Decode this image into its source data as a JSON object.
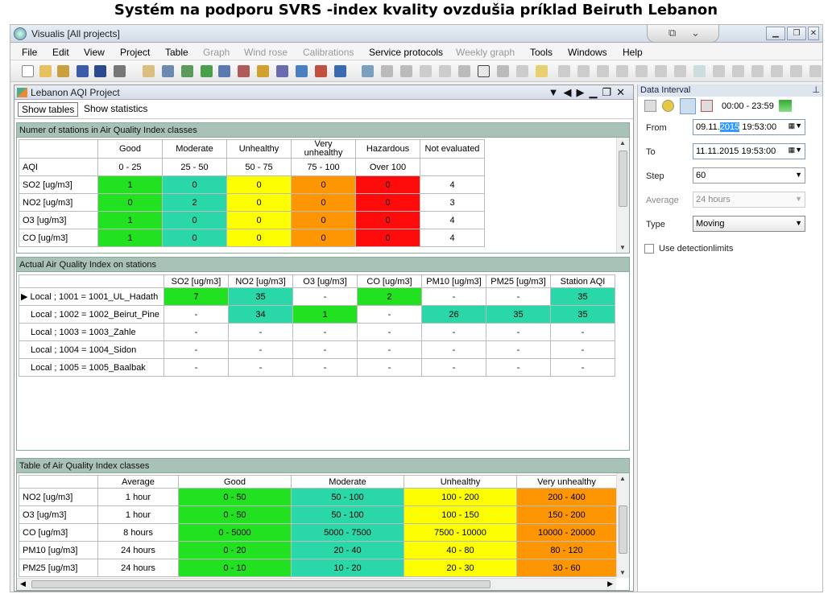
{
  "slide_title": "Systém na podporu SVRS -index kvality ovzdušia príklad Beiruth Lebanon",
  "window": {
    "title": "Visualis [All projects]"
  },
  "menu": [
    {
      "label": "File",
      "enabled": true
    },
    {
      "label": "Edit",
      "enabled": true
    },
    {
      "label": "View",
      "enabled": true
    },
    {
      "label": "Project",
      "enabled": true
    },
    {
      "label": "Table",
      "enabled": true
    },
    {
      "label": "Graph",
      "enabled": false
    },
    {
      "label": "Wind rose",
      "enabled": false
    },
    {
      "label": "Calibrations",
      "enabled": false
    },
    {
      "label": "Service protocols",
      "enabled": true
    },
    {
      "label": "Weekly graph",
      "enabled": false
    },
    {
      "label": "Tools",
      "enabled": true
    },
    {
      "label": "Windows",
      "enabled": true
    },
    {
      "label": "Help",
      "enabled": true
    }
  ],
  "project": {
    "title": "Lebanon AQI Project",
    "show_tables": "Show tables",
    "show_statistics": "Show statistics"
  },
  "section1": {
    "title": "Numer of stations in Air Quality Index classes",
    "headers": [
      "",
      "Good",
      "Moderate",
      "Unhealthy",
      "Very unhealthy",
      "Hazardous",
      "Not evaluated"
    ],
    "aqi_row": [
      "AQI",
      "0 - 25",
      "25 - 50",
      "50 - 75",
      "75 - 100",
      "Over 100",
      ""
    ],
    "rows": [
      {
        "name": "SO2 [ug/m3]",
        "vals": [
          "1",
          "0",
          "0",
          "0",
          "0",
          "4"
        ]
      },
      {
        "name": "NO2 [ug/m3]",
        "vals": [
          "0",
          "2",
          "0",
          "0",
          "0",
          "3"
        ]
      },
      {
        "name": "O3 [ug/m3]",
        "vals": [
          "1",
          "0",
          "0",
          "0",
          "0",
          "4"
        ]
      },
      {
        "name": "CO [ug/m3]",
        "vals": [
          "1",
          "0",
          "0",
          "0",
          "0",
          "4"
        ]
      }
    ]
  },
  "section2": {
    "title": "Actual Air Quality Index on stations",
    "headers": [
      "",
      "SO2 [ug/m3]",
      "NO2 [ug/m3]",
      "O3 [ug/m3]",
      "CO [ug/m3]",
      "PM10 [ug/m3]",
      "PM25 [ug/m3]",
      "Station AQI"
    ],
    "rows": [
      {
        "name": "Local ; 1001 = 1001_UL_Hadath",
        "current": true,
        "vals": [
          "7",
          "35",
          "-",
          "2",
          "-",
          "-",
          "35"
        ],
        "colors": [
          "g",
          "t2",
          "",
          "g",
          "",
          "",
          "t2"
        ]
      },
      {
        "name": "Local ; 1002 = 1002_Beirut_Pine",
        "current": false,
        "vals": [
          "-",
          "34",
          "1",
          "-",
          "26",
          "35",
          "35"
        ],
        "colors": [
          "",
          "t2",
          "g",
          "",
          "t2",
          "t2",
          "t2"
        ]
      },
      {
        "name": "Local ; 1003 = 1003_Zahle",
        "current": false,
        "vals": [
          "-",
          "-",
          "-",
          "-",
          "-",
          "-",
          "-"
        ],
        "colors": [
          "",
          "",
          "",
          "",
          "",
          "",
          ""
        ]
      },
      {
        "name": "Local ; 1004 = 1004_Sidon",
        "current": false,
        "vals": [
          "-",
          "-",
          "-",
          "-",
          "-",
          "-",
          "-"
        ],
        "colors": [
          "",
          "",
          "",
          "",
          "",
          "",
          ""
        ]
      },
      {
        "name": "Local ; 1005 = 1005_Baalbak",
        "current": false,
        "vals": [
          "-",
          "-",
          "-",
          "-",
          "-",
          "-",
          "-"
        ],
        "colors": [
          "",
          "",
          "",
          "",
          "",
          "",
          ""
        ]
      }
    ]
  },
  "section3": {
    "title": "Table of Air Quality Index classes",
    "headers": [
      "",
      "Average",
      "Good",
      "Moderate",
      "Unhealthy",
      "Very unhealthy"
    ],
    "rows": [
      {
        "name": "NO2 [ug/m3]",
        "avg": "1 hour",
        "vals": [
          "0 - 50",
          "50 - 100",
          "100 - 200",
          "200 - 400"
        ]
      },
      {
        "name": "O3 [ug/m3]",
        "avg": "1 hour",
        "vals": [
          "0 - 50",
          "50 - 100",
          "100 - 150",
          "150 - 200"
        ]
      },
      {
        "name": "CO [ug/m3]",
        "avg": "8 hours",
        "vals": [
          "0 - 5000",
          "5000 - 7500",
          "7500 - 10000",
          "10000 - 20000"
        ]
      },
      {
        "name": "PM10 [ug/m3]",
        "avg": "24 hours",
        "vals": [
          "0 - 20",
          "20 - 40",
          "40 - 80",
          "80 - 120"
        ]
      },
      {
        "name": "PM25 [ug/m3]",
        "avg": "24 hours",
        "vals": [
          "0 - 10",
          "10 - 20",
          "20 - 30",
          "30 - 60"
        ]
      }
    ]
  },
  "data_interval": {
    "title": "Data Interval",
    "time_range": "00:00 - 23:59",
    "from_label": "From",
    "from_prefix": "09.11.",
    "from_selected": "2015",
    "from_suffix": " 19:53:00",
    "to_label": "To",
    "to_value": "11.11.2015 19:53:00",
    "step_label": "Step",
    "step_value": "60",
    "average_label": "Average",
    "average_value": "24 hours",
    "type_label": "Type",
    "type_value": "Moving",
    "detection_label": "Use detectionlimits",
    "detection_checked": false
  },
  "colors": {
    "good": "#21e121",
    "moderate": "#2ad7a9",
    "unhealthy": "#fefe03",
    "very_unhealthy": "#fe9604",
    "hazardous": "#fe0c0c",
    "section_header": "#a9c2b8"
  }
}
